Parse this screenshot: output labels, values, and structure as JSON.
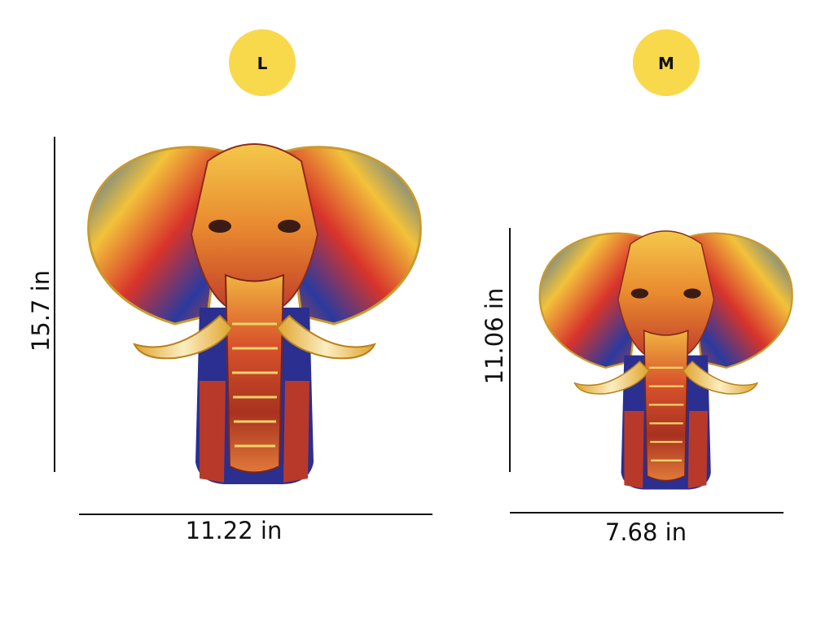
{
  "sizes": [
    {
      "label": "L",
      "height": "15.7 in",
      "width": "11.22 in"
    },
    {
      "label": "M",
      "height": "11.06 in",
      "width": "7.68 in"
    }
  ]
}
